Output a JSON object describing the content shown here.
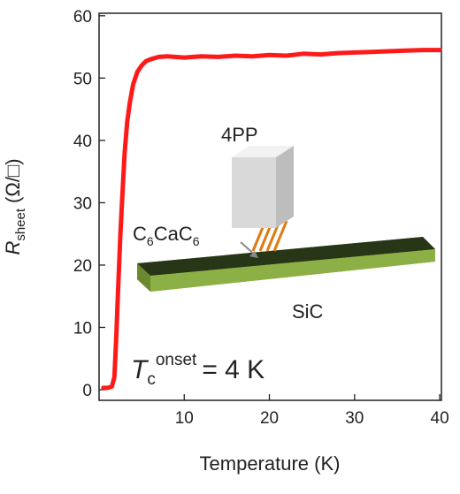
{
  "chart_data": {
    "type": "line",
    "ylabel": [
      "R",
      "sheet",
      "(Ω/□)"
    ],
    "xlabel": "Temperature (K)",
    "annotations": [
      {
        "text": [
          "4PP"
        ]
      },
      {
        "text": [
          "C",
          "6",
          "Ca",
          "C",
          "6"
        ]
      },
      {
        "text": [
          "SiC"
        ]
      },
      {
        "text": [
          "T",
          "c",
          "onset",
          "= 4 K"
        ]
      }
    ],
    "x": [
      0.5,
      1,
      1.5,
      1.8,
      2,
      2.2,
      2.5,
      2.8,
      3,
      3.3,
      3.6,
      4,
      4.5,
      5,
      5.5,
      6,
      6.5,
      7,
      8,
      10,
      12,
      14,
      16,
      18,
      20,
      22,
      24,
      26,
      28,
      30,
      32,
      34,
      36,
      38,
      40
    ],
    "series": [
      {
        "color": "#ff1a1a",
        "values": [
          0.3,
          0.3,
          0.5,
          2,
          8,
          15,
          25,
          33,
          38,
          43,
          46,
          49,
          51,
          52,
          52.7,
          53,
          53.2,
          53.4,
          53.5,
          53.3,
          53.5,
          53.4,
          53.6,
          53.5,
          53.7,
          53.6,
          53.9,
          53.8,
          54,
          54.1,
          54.2,
          54.3,
          54.4,
          54.5,
          54.5
        ]
      }
    ],
    "xlim": [
      0,
      40.2
    ],
    "ylim": [
      -1.7,
      60.4
    ],
    "xticks": [
      10,
      20,
      30,
      40
    ],
    "yticks": [
      0,
      10,
      20,
      30,
      40,
      50,
      60
    ]
  }
}
